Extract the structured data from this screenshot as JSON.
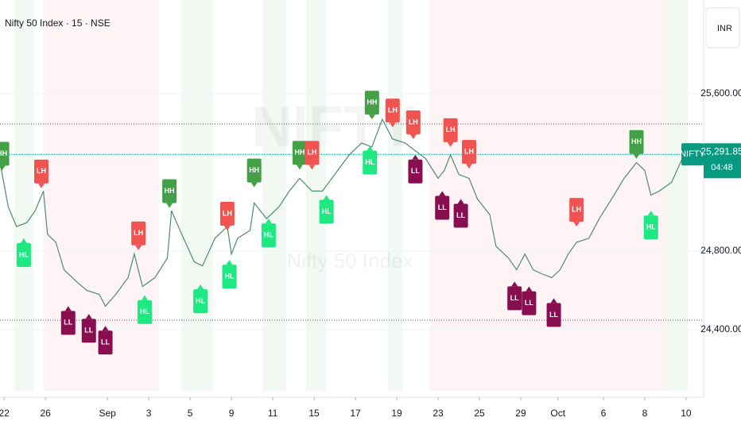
{
  "chart_data": {
    "type": "line",
    "title": "Nifty 50 Index · 15 · NSE",
    "watermark": "NIFTY",
    "watermark_subtitle": "Nifty 50 Index",
    "currency": "INR",
    "color": "#4f8a72",
    "grid": true,
    "x": [
      -0.2,
      0.2,
      0.6,
      1.1,
      1.5,
      1.9,
      2.1,
      2.5,
      2.9,
      3.5,
      4.0,
      4.6,
      4.9,
      5.4,
      6.0,
      6.3,
      6.7,
      7.3,
      7.9,
      8.1,
      8.6,
      9.2,
      9.6,
      10.2,
      10.8,
      11.0,
      11.3,
      11.9,
      12.1,
      12.7,
      13.3,
      13.8,
      14.3,
      14.9,
      15.4,
      16.0,
      16.7,
      17.3,
      17.8,
      18.3,
      18.8,
      19.4,
      19.9,
      20.4,
      21.0,
      21.3,
      21.6,
      22.0,
      22.5,
      22.9,
      23.5,
      23.8,
      24.4,
      24.8,
      25.2,
      25.6,
      26.0,
      26.5,
      26.9,
      27.3,
      27.7,
      28.3,
      28.8,
      29.4,
      30.0,
      30.6,
      31.0,
      31.3,
      31.7,
      32.3,
      32.9
    ],
    "values": [
      25250,
      25025,
      24925,
      24945,
      25005,
      25105,
      24885,
      24845,
      24705,
      24645,
      24600,
      24580,
      24520,
      24580,
      24665,
      24785,
      24620,
      24665,
      24765,
      25005,
      24885,
      24745,
      24725,
      24865,
      24925,
      24785,
      24865,
      24905,
      25045,
      24965,
      25025,
      25105,
      25170,
      25105,
      25105,
      25190,
      25290,
      25350,
      25330,
      25470,
      25370,
      25350,
      25310,
      25270,
      25170,
      25210,
      25290,
      25190,
      25170,
      25065,
      24985,
      24825,
      24765,
      24705,
      24785,
      24705,
      24685,
      24665,
      24705,
      24785,
      24845,
      24865,
      24965,
      25065,
      25170,
      25250,
      25210,
      25085,
      25105,
      25150,
      25290
    ],
    "xlim": [
      -0.2,
      33.85
    ],
    "xticks": [
      {
        "value": 0,
        "label": "22"
      },
      {
        "value": 2,
        "label": "26"
      },
      {
        "value": 5,
        "label": "Sep"
      },
      {
        "value": 7,
        "label": "3"
      },
      {
        "value": 9,
        "label": "5"
      },
      {
        "value": 11,
        "label": "9"
      },
      {
        "value": 13,
        "label": "11"
      },
      {
        "value": 15,
        "label": "15"
      },
      {
        "value": 17,
        "label": "17"
      },
      {
        "value": 19,
        "label": "19"
      },
      {
        "value": 21,
        "label": "23"
      },
      {
        "value": 23,
        "label": "25"
      },
      {
        "value": 25,
        "label": "29"
      },
      {
        "value": 26.8,
        "label": "Oct"
      },
      {
        "value": 29,
        "label": "6"
      },
      {
        "value": 31,
        "label": "8"
      },
      {
        "value": 33,
        "label": "10"
      }
    ],
    "ylim": [
      24097,
      26077
    ],
    "yticks": [
      {
        "value": 25600,
        "label": "25,600.00"
      },
      {
        "value": 24800,
        "label": "24,800.00"
      },
      {
        "value": 24400,
        "label": "24,400.00"
      }
    ],
    "last_price": 25291.85,
    "last_price_label": "25,291.85",
    "price_tag": "NIFTY",
    "countdown": "04:48",
    "pivot_colors": {
      "HH": "#43a047",
      "LH": "#f05350",
      "HL": "#1de882",
      "LL": "#880e4f"
    },
    "pivots": [
      {
        "label": "HH",
        "x": -0.1,
        "y": 25210
      },
      {
        "label": "HL",
        "x": 0.95,
        "y": 24865
      },
      {
        "label": "LH",
        "x": 1.8,
        "y": 25120
      },
      {
        "label": "LL",
        "x": 3.1,
        "y": 24520
      },
      {
        "label": "LL",
        "x": 4.1,
        "y": 24480
      },
      {
        "label": "LL",
        "x": 4.9,
        "y": 24420
      },
      {
        "label": "LH",
        "x": 6.5,
        "y": 24805
      },
      {
        "label": "HL",
        "x": 6.8,
        "y": 24575
      },
      {
        "label": "HH",
        "x": 8.0,
        "y": 25020
      },
      {
        "label": "HL",
        "x": 9.5,
        "y": 24630
      },
      {
        "label": "LH",
        "x": 10.8,
        "y": 24905
      },
      {
        "label": "HL",
        "x": 10.9,
        "y": 24755
      },
      {
        "label": "HH",
        "x": 12.1,
        "y": 25125
      },
      {
        "label": "HL",
        "x": 12.8,
        "y": 24965
      },
      {
        "label": "HH",
        "x": 14.3,
        "y": 25215
      },
      {
        "label": "LH",
        "x": 14.9,
        "y": 25215
      },
      {
        "label": "HL",
        "x": 15.6,
        "y": 25085
      },
      {
        "label": "HL",
        "x": 17.7,
        "y": 25335
      },
      {
        "label": "HH",
        "x": 17.8,
        "y": 25470
      },
      {
        "label": "LH",
        "x": 18.8,
        "y": 25430
      },
      {
        "label": "LH",
        "x": 19.8,
        "y": 25370
      },
      {
        "label": "LL",
        "x": 19.9,
        "y": 25290
      },
      {
        "label": "LL",
        "x": 21.2,
        "y": 25105
      },
      {
        "label": "LH",
        "x": 21.6,
        "y": 25330
      },
      {
        "label": "LL",
        "x": 22.1,
        "y": 25065
      },
      {
        "label": "LH",
        "x": 22.5,
        "y": 25220
      },
      {
        "label": "LL",
        "x": 24.7,
        "y": 24645
      },
      {
        "label": "LL",
        "x": 25.4,
        "y": 24620
      },
      {
        "label": "LL",
        "x": 26.6,
        "y": 24560
      },
      {
        "label": "LH",
        "x": 27.7,
        "y": 24925
      },
      {
        "label": "HH",
        "x": 30.6,
        "y": 25270
      },
      {
        "label": "HL",
        "x": 31.3,
        "y": 25005
      }
    ]
  }
}
